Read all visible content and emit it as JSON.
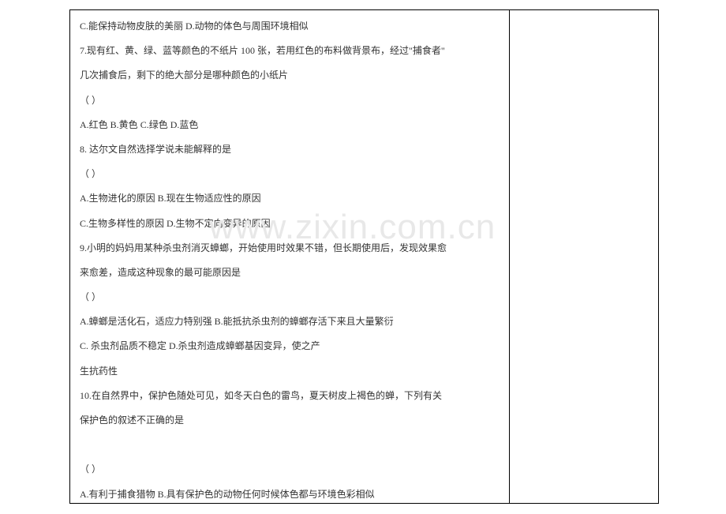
{
  "watermark": "www.zixin.com.cn",
  "q6": {
    "optC": "C.能保持动物皮肤的美丽",
    "optD": "D.动物的体色与周围环境相似"
  },
  "q7": {
    "stem1": "7.现有红、黄、绿、蓝等颜色的不纸片 100 张，若用红色的布料做背景布，经过\"捕食者\"",
    "stem2": "几次捕食后，剩下的绝大部分是哪种颜色的小纸片",
    "paren": "（          ）",
    "optA": "A.红色",
    "optB": "B.黄色",
    "optC": "C.绿色",
    "optD": "D.蓝色"
  },
  "q8": {
    "stem": "8. 达尔文自然选择学说未能解释的是",
    "paren": "（          ）",
    "optA": "A.生物进化的原因",
    "optB": "B.现在生物适应性的原因",
    "optC": "C.生物多样性的原因",
    "optD": "D.生物不定向变异的原因"
  },
  "q9": {
    "stem1": "9.小明的妈妈用某种杀虫剂消灭蟑螂，开始使用时效果不错，但长期使用后，发现效果愈",
    "stem2": "来愈差，造成这种现象的最可能原因是",
    "paren": "（       ）",
    "optA": "A.蟑螂是活化石，适应力特别强",
    "optB": "B.能抵抗杀虫剂的蟑螂存活下来且大量繁衍",
    "optC": "C. 杀虫剂品质不稳定",
    "optD1": "D.杀虫剂造成蟑螂基因变异，使之产",
    "optD2": "生抗药性"
  },
  "q10": {
    "stem1": "10.在自然界中，保护色随处可见，如冬天白色的雷鸟，夏天树皮上褐色的蝉，下列有关",
    "stem2": "保护色的叙述不正确的是",
    "paren": "（       ）",
    "optA": "A.有利于捕食猎物",
    "optB": "B.具有保护色的动物任何时候体色都与环境色彩相似"
  },
  "spacing": {
    "gap_q6": "                                 ",
    "gap_q7_ab": "            ",
    "gap_q7_bc": "                  ",
    "gap_q7_cd": "                         ",
    "gap_q8_ab": "                  ",
    "gap_q8_cd": "           ",
    "gap_q9_ab": "                    ",
    "gap_q9_cd": "                                       ",
    "gap_q10_ab": "                          "
  }
}
